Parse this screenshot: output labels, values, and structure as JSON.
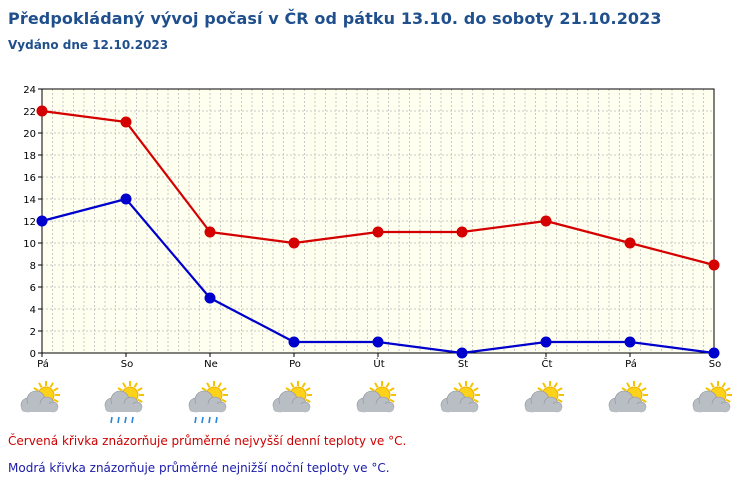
{
  "header": {
    "title": "Předpokládaný vývoj počasí v ČR od pátku 13.10. do soboty 21.10.2023",
    "issued": "Vydáno dne 12.10.2023"
  },
  "legend_notes": {
    "red": "Červená křivka znázorňuje průměrné nejvyšší denní teploty ve °C.",
    "blue": "Modrá křivka znázorňuje průměrné nejnižší noční teploty ve °C."
  },
  "colors": {
    "max_line": "#d40000",
    "min_line": "#0000cc",
    "plot_bg": "#fffff0",
    "grid": "#c8c8c8",
    "axis": "#000000"
  },
  "weather_icons": [
    {
      "day": "Pá",
      "icon": "partly-cloudy-icon"
    },
    {
      "day": "So",
      "icon": "cloudy-rain-icon"
    },
    {
      "day": "Ne",
      "icon": "cloudy-rain-icon"
    },
    {
      "day": "Po",
      "icon": "partly-cloudy-icon"
    },
    {
      "day": "Út",
      "icon": "partly-cloudy-icon"
    },
    {
      "day": "St",
      "icon": "partly-cloudy-icon"
    },
    {
      "day": "Čt",
      "icon": "partly-cloudy-icon"
    },
    {
      "day": "Pá",
      "icon": "partly-cloudy-icon"
    },
    {
      "day": "So",
      "icon": "partly-cloudy-icon"
    }
  ],
  "chart_data": {
    "type": "line",
    "title": "Předpokládaný vývoj počasí v ČR od pátku 13.10. do soboty 21.10.2023",
    "xlabel": "",
    "ylabel": "",
    "categories": [
      "Pá",
      "So",
      "Ne",
      "Po",
      "Út",
      "St",
      "Čt",
      "Pá",
      "So"
    ],
    "ylim": [
      0,
      24
    ],
    "yticks": [
      0,
      2,
      4,
      6,
      8,
      10,
      12,
      14,
      16,
      18,
      20,
      22,
      24
    ],
    "grid": true,
    "series": [
      {
        "key": "max",
        "color": "#d40000",
        "values": [
          22,
          21,
          11,
          10,
          11,
          11,
          12,
          10,
          8
        ]
      },
      {
        "key": "min",
        "color": "#0000cc",
        "values": [
          12,
          14,
          5,
          1,
          1,
          0,
          1,
          1,
          0
        ]
      }
    ]
  }
}
